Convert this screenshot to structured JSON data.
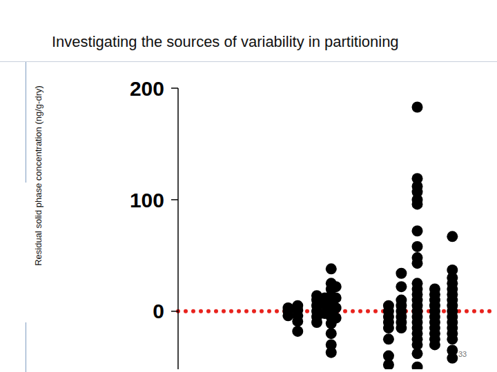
{
  "chart_data": {
    "type": "scatter",
    "title": "Investigating the sources of variability in partitioning",
    "y_label": "Residual solid phase concentration (ng/g-dry)",
    "x": [
      3.45,
      3.45,
      3.45,
      3.75,
      3.75,
      3.75,
      3.75,
      3.75,
      4.35,
      4.35,
      4.35,
      4.35,
      4.35,
      4.35,
      4.6,
      4.6,
      4.6,
      4.8,
      4.8,
      4.8,
      4.8,
      4.8,
      4.8,
      4.8,
      4.8,
      4.8,
      4.8,
      4.8,
      4.95,
      4.95,
      4.95,
      4.95,
      6.6,
      6.6,
      6.6,
      6.6,
      6.6,
      6.6,
      6.6,
      6.6,
      7.0,
      7.0,
      7.0,
      7.0,
      7.0,
      7.0,
      7.0,
      7.0,
      7.5,
      7.5,
      7.5,
      7.5,
      7.5,
      7.5,
      7.5,
      7.5,
      7.5,
      7.5,
      7.5,
      7.5,
      7.5,
      7.5,
      7.5,
      7.5,
      7.5,
      7.5,
      7.5,
      7.5,
      7.5,
      7.5,
      7.5,
      7.5,
      8.05,
      8.05,
      8.05,
      8.05,
      8.05,
      8.05,
      8.05,
      8.05,
      8.05,
      8.05,
      8.05,
      8.6,
      8.6,
      8.6,
      8.6,
      8.6,
      8.6,
      8.6,
      8.6,
      8.6,
      8.6,
      8.6,
      8.6,
      8.6,
      8.6,
      8.6,
      8.6
    ],
    "values": [
      3,
      0,
      -4,
      5,
      1,
      -4,
      -9,
      -18,
      14,
      10,
      5,
      0,
      -5,
      -10,
      12,
      6,
      -2,
      38,
      25,
      20,
      14,
      7,
      0,
      -5,
      -11,
      -20,
      -30,
      -37,
      22,
      12,
      3,
      -6,
      5,
      0,
      -5,
      -10,
      -15,
      -25,
      -40,
      -48,
      34,
      22,
      10,
      5,
      0,
      -5,
      -10,
      -15,
      183,
      119,
      112,
      107,
      100,
      96,
      72,
      58,
      48,
      43,
      25,
      20,
      15,
      10,
      5,
      0,
      -5,
      -10,
      -15,
      -20,
      -25,
      -30,
      -38,
      -50,
      20,
      15,
      10,
      5,
      0,
      -5,
      -10,
      -15,
      -20,
      -25,
      -30,
      67,
      37,
      30,
      25,
      20,
      15,
      10,
      5,
      0,
      -5,
      -10,
      -15,
      -20,
      -25,
      -35,
      -42
    ],
    "color": "#000000",
    "marker": "circle",
    "xlim": [
      0,
      10
    ],
    "ylim": [
      -52,
      200
    ],
    "yticks": [
      0,
      100,
      200
    ],
    "tick_labels": "y",
    "grid": false,
    "reference_lines": [
      {
        "y": 0,
        "color": "#e8231e",
        "line_style": "dotted"
      }
    ],
    "annotations": [
      {
        "text": "33"
      }
    ]
  }
}
